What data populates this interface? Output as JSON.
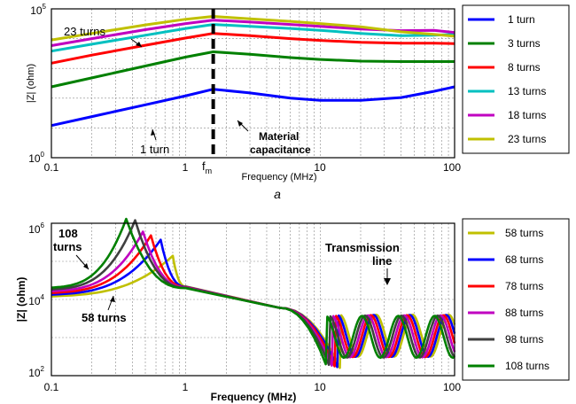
{
  "chart_data": [
    {
      "type": "line",
      "xscale": "log",
      "yscale": "log",
      "xlim": [
        0.1,
        100
      ],
      "ylim": [
        1,
        100000
      ],
      "xlabel": "Frequency (MHz)",
      "ylabel": "|Z| (ohm)",
      "caption": "a",
      "x_ticks": [
        "0.1",
        "1",
        "10",
        "100"
      ],
      "y_ticks": [
        {
          "base": "10",
          "exp": "0"
        },
        {
          "base": "10",
          "exp": "5"
        }
      ],
      "annotations": [
        {
          "id": "23",
          "text": "23 turns"
        },
        {
          "id": "1",
          "text": "1 turn"
        },
        {
          "id": "fm_base",
          "text": "f"
        },
        {
          "id": "fm_sub",
          "text": "m"
        },
        {
          "id": "mc1",
          "text": "Material"
        },
        {
          "id": "mc2",
          "text": "capacitance"
        }
      ],
      "marker": {
        "label": "f_m",
        "x": 1.6
      },
      "legend_position": "right",
      "series": [
        {
          "name": "1 turn",
          "color": "#0000ff",
          "x": [
            0.1,
            0.2,
            0.5,
            1.0,
            1.6,
            3,
            6,
            10,
            20,
            40,
            70,
            100
          ],
          "y": [
            12,
            24,
            60,
            120,
            200,
            150,
            100,
            85,
            85,
            105,
            170,
            240
          ]
        },
        {
          "name": "3 turns",
          "color": "#008000",
          "x": [
            0.1,
            0.2,
            0.5,
            1.0,
            1.6,
            3,
            6,
            10,
            20,
            40,
            70,
            100
          ],
          "y": [
            240,
            480,
            1200,
            2400,
            3600,
            3000,
            2300,
            2000,
            1750,
            1700,
            1700,
            1700
          ]
        },
        {
          "name": "8 turns",
          "color": "#ff0000",
          "x": [
            0.1,
            0.2,
            0.5,
            1.0,
            1.6,
            3,
            6,
            10,
            20,
            40,
            70,
            100
          ],
          "y": [
            1500,
            2800,
            6000,
            10500,
            15000,
            12500,
            10000,
            8700,
            7500,
            7000,
            7000,
            6800
          ]
        },
        {
          "name": "13 turns",
          "color": "#00c0c0",
          "x": [
            0.1,
            0.2,
            0.5,
            1.0,
            1.6,
            3,
            6,
            10,
            20,
            40,
            70,
            100
          ],
          "y": [
            3800,
            6500,
            13000,
            22000,
            30000,
            26000,
            22000,
            19000,
            15000,
            12500,
            13000,
            14000
          ]
        },
        {
          "name": "18 turns",
          "color": "#c000c0",
          "x": [
            0.1,
            0.2,
            0.5,
            1.0,
            1.6,
            3,
            6,
            10,
            20,
            40,
            70,
            100
          ],
          "y": [
            5800,
            10000,
            20000,
            32000,
            42000,
            36000,
            30000,
            26000,
            21000,
            18500,
            19000,
            16000
          ]
        },
        {
          "name": "23 turns",
          "color": "#c0c000",
          "x": [
            0.1,
            0.2,
            0.5,
            1.0,
            1.6,
            3,
            6,
            10,
            20,
            40,
            70,
            100
          ],
          "y": [
            9000,
            15000,
            29000,
            45000,
            56000,
            46000,
            38000,
            32000,
            25000,
            17000,
            14000,
            12000
          ]
        }
      ]
    },
    {
      "type": "line",
      "xscale": "log",
      "yscale": "log",
      "xlim": [
        0.1,
        100
      ],
      "ylim": [
        100,
        1000000
      ],
      "xlabel": "Frequency (MHz)",
      "ylabel": "|Z| (ohm)",
      "x_ticks": [
        "0.1",
        "1",
        "10",
        "100"
      ],
      "y_ticks": [
        {
          "base": "10",
          "exp": "2"
        },
        {
          "base": "10",
          "exp": "4"
        },
        {
          "base": "10",
          "exp": "6"
        }
      ],
      "annotations": [
        {
          "id": "108a",
          "text": "108"
        },
        {
          "id": "108b",
          "text": "turns"
        },
        {
          "id": "58",
          "text": "58 turns"
        },
        {
          "id": "tl1",
          "text": "Transmission"
        },
        {
          "id": "tl2",
          "text": "line"
        }
      ],
      "legend_position": "right",
      "series": [
        {
          "name": "58 turns",
          "color": "#c0c000",
          "peak_freq": 0.8,
          "peak_z": 140000
        },
        {
          "name": "68 turns",
          "color": "#0000ff",
          "peak_freq": 0.65,
          "peak_z": 370000
        },
        {
          "name": "78 turns",
          "color": "#ff0000",
          "peak_freq": 0.55,
          "peak_z": 480000
        },
        {
          "name": "88 turns",
          "color": "#c000c0",
          "peak_freq": 0.48,
          "peak_z": 600000
        },
        {
          "name": "98 turns",
          "color": "#404040",
          "peak_freq": 0.42,
          "peak_z": 1200000
        },
        {
          "name": "108 turns",
          "color": "#008000",
          "peak_freq": 0.36,
          "peak_z": 1300000
        }
      ]
    }
  ]
}
